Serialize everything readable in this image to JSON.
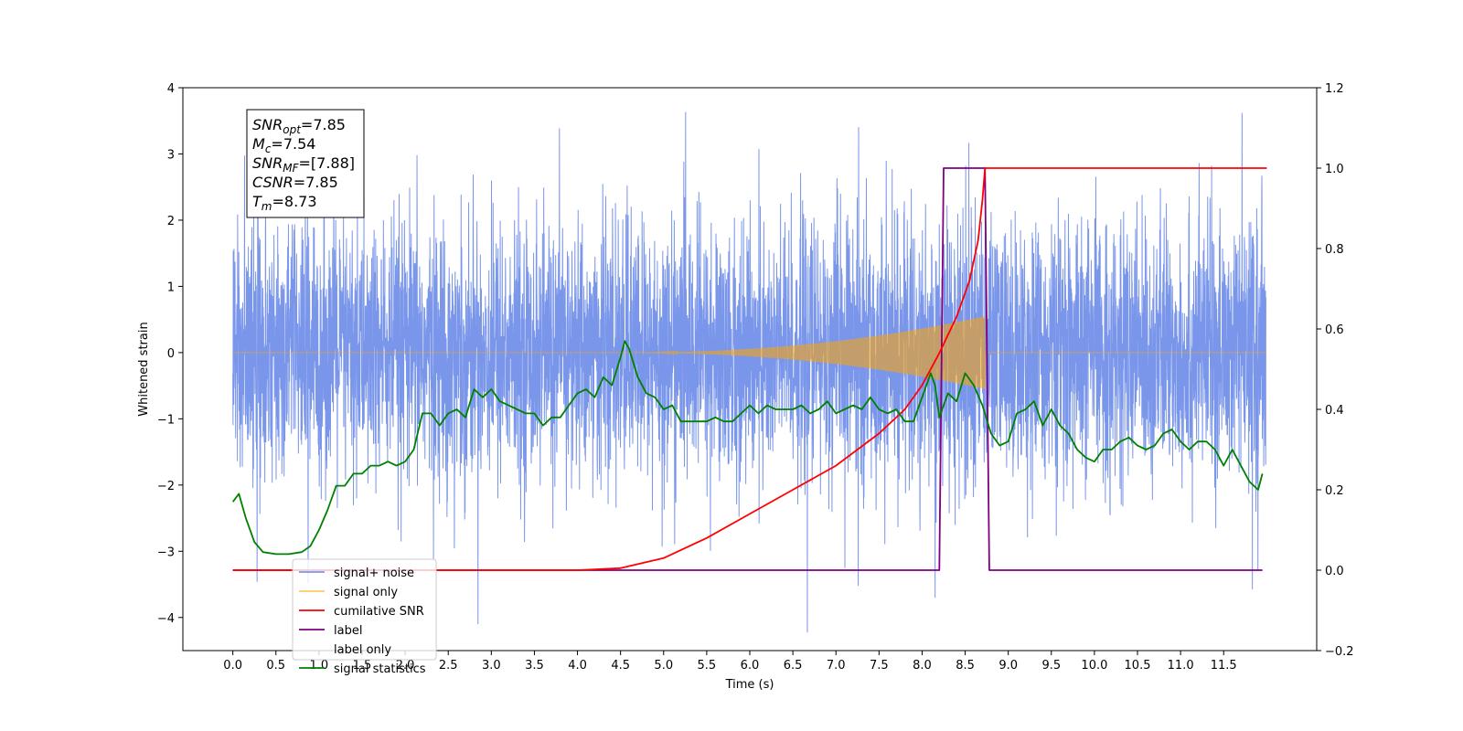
{
  "chart_data": {
    "type": "line",
    "title": "",
    "xlabel": "Time (s)",
    "ylabel": "Whitened strain",
    "ylabel_right": "",
    "xlim": [
      -0.58,
      12.58
    ],
    "ylim": [
      -4.5,
      4.0
    ],
    "ylim_right": [
      -0.2,
      1.2
    ],
    "x_ticks": [
      "0.0",
      "0.5",
      "1.0",
      "1.5",
      "2.0",
      "2.5",
      "3.0",
      "3.5",
      "4.0",
      "4.5",
      "5.0",
      "5.5",
      "6.0",
      "6.5",
      "7.0",
      "7.5",
      "8.0",
      "8.5",
      "9.0",
      "9.5",
      "10.0",
      "10.5",
      "11.0",
      "11.5"
    ],
    "y_ticks_left": [
      "4",
      "3",
      "2",
      "1",
      "0",
      "−1",
      "−2",
      "−3",
      "−4"
    ],
    "y_ticks_right": [
      "1.2",
      "1.0",
      "0.8",
      "0.6",
      "0.4",
      "0.2",
      "0.0",
      "−0.2"
    ],
    "grid": false,
    "legend_position": "lower-left",
    "annotation_box": {
      "lines": [
        {
          "main": "SNR",
          "sub": "opt",
          "rest": "=7.85"
        },
        {
          "main": "M",
          "sub": "c",
          "rest": "=7.54"
        },
        {
          "main": "SNR",
          "sub": "MF",
          "rest": "=[7.88]"
        },
        {
          "main": "CSNR",
          "sub": "",
          "rest": "=7.85"
        },
        {
          "main": "T",
          "sub": "m",
          "rest": "=8.73"
        }
      ]
    },
    "series": [
      {
        "name": "signal+ noise",
        "color": "#4169e1",
        "axis": "left",
        "kind": "noise",
        "x_range": [
          0.0,
          11.99
        ],
        "std": 0.95,
        "max": 3.62,
        "min": -4.1
      },
      {
        "name": "signal only",
        "color": "#ffa500",
        "axis": "left",
        "kind": "chirp",
        "t_merge": 8.73,
        "start": 4.5,
        "peak_amplitude": 0.55
      },
      {
        "name": "cumilative SNR",
        "color": "#ff0000",
        "axis": "right",
        "x": [
          0.0,
          4.0,
          4.5,
          5.0,
          5.5,
          6.0,
          6.5,
          7.0,
          7.5,
          7.8,
          8.0,
          8.2,
          8.4,
          8.55,
          8.65,
          8.7,
          8.73,
          12.0
        ],
        "y": [
          0.0,
          0.0,
          0.005,
          0.03,
          0.08,
          0.14,
          0.2,
          0.26,
          0.34,
          0.4,
          0.46,
          0.54,
          0.63,
          0.72,
          0.82,
          0.92,
          1.0,
          1.0
        ]
      },
      {
        "name": "label",
        "color": "#800080",
        "axis": "right",
        "x": [
          0.0,
          8.2,
          8.25,
          8.73,
          8.78,
          11.95
        ],
        "y": [
          0.0,
          0.0,
          1.0,
          1.0,
          0.0,
          0.0
        ]
      },
      {
        "name": "label only",
        "color": "#ffffff",
        "axis": "right",
        "x": [],
        "y": []
      },
      {
        "name": "signal statistics",
        "color": "#008000",
        "axis": "right",
        "x": [
          0.0,
          0.07,
          0.15,
          0.25,
          0.35,
          0.5,
          0.65,
          0.8,
          0.9,
          1.0,
          1.1,
          1.2,
          1.3,
          1.4,
          1.5,
          1.6,
          1.7,
          1.8,
          1.9,
          2.0,
          2.1,
          2.2,
          2.3,
          2.4,
          2.5,
          2.6,
          2.7,
          2.8,
          2.9,
          3.0,
          3.1,
          3.2,
          3.3,
          3.4,
          3.5,
          3.6,
          3.7,
          3.8,
          3.9,
          4.0,
          4.1,
          4.2,
          4.3,
          4.4,
          4.5,
          4.55,
          4.6,
          4.7,
          4.8,
          4.9,
          5.0,
          5.1,
          5.2,
          5.3,
          5.4,
          5.5,
          5.6,
          5.7,
          5.8,
          5.9,
          6.0,
          6.1,
          6.2,
          6.3,
          6.4,
          6.5,
          6.6,
          6.7,
          6.8,
          6.9,
          7.0,
          7.1,
          7.2,
          7.3,
          7.4,
          7.5,
          7.6,
          7.7,
          7.8,
          7.9,
          8.0,
          8.1,
          8.15,
          8.2,
          8.3,
          8.4,
          8.5,
          8.6,
          8.7,
          8.8,
          8.9,
          9.0,
          9.1,
          9.2,
          9.3,
          9.4,
          9.5,
          9.6,
          9.7,
          9.8,
          9.9,
          10.0,
          10.1,
          10.2,
          10.3,
          10.4,
          10.5,
          10.6,
          10.7,
          10.8,
          10.9,
          11.0,
          11.1,
          11.2,
          11.3,
          11.4,
          11.5,
          11.6,
          11.7,
          11.8,
          11.9,
          11.95
        ],
        "y": [
          0.17,
          0.19,
          0.13,
          0.07,
          0.045,
          0.04,
          0.04,
          0.045,
          0.06,
          0.1,
          0.15,
          0.21,
          0.21,
          0.24,
          0.24,
          0.26,
          0.26,
          0.27,
          0.26,
          0.27,
          0.3,
          0.39,
          0.39,
          0.36,
          0.39,
          0.4,
          0.38,
          0.45,
          0.43,
          0.45,
          0.42,
          0.41,
          0.4,
          0.39,
          0.39,
          0.36,
          0.38,
          0.38,
          0.41,
          0.44,
          0.45,
          0.43,
          0.48,
          0.46,
          0.53,
          0.57,
          0.55,
          0.48,
          0.44,
          0.43,
          0.4,
          0.41,
          0.37,
          0.37,
          0.37,
          0.37,
          0.38,
          0.37,
          0.37,
          0.39,
          0.41,
          0.39,
          0.41,
          0.4,
          0.4,
          0.4,
          0.41,
          0.39,
          0.4,
          0.42,
          0.39,
          0.4,
          0.41,
          0.4,
          0.43,
          0.4,
          0.39,
          0.4,
          0.37,
          0.37,
          0.43,
          0.49,
          0.46,
          0.38,
          0.44,
          0.42,
          0.49,
          0.46,
          0.41,
          0.34,
          0.31,
          0.32,
          0.39,
          0.4,
          0.42,
          0.36,
          0.4,
          0.36,
          0.34,
          0.3,
          0.28,
          0.27,
          0.3,
          0.3,
          0.32,
          0.33,
          0.31,
          0.3,
          0.31,
          0.34,
          0.35,
          0.32,
          0.3,
          0.32,
          0.32,
          0.3,
          0.26,
          0.3,
          0.26,
          0.22,
          0.2,
          0.24
        ]
      }
    ]
  }
}
